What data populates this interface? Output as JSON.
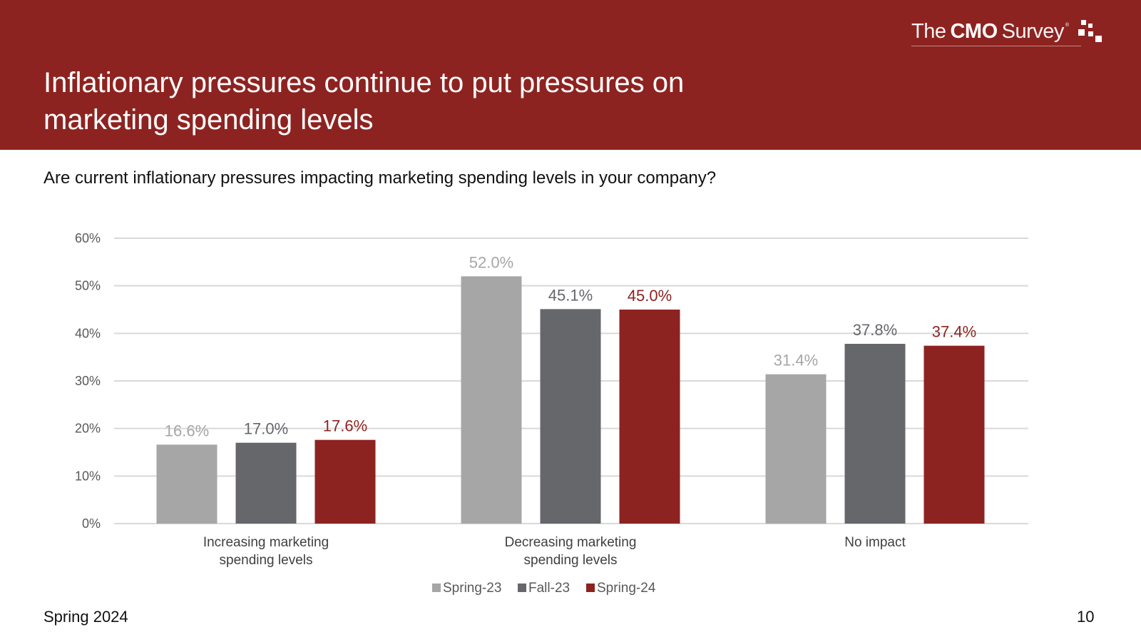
{
  "header": {
    "title": "Inflationary pressures continue to put pressures on marketing spending levels",
    "logo": {
      "the": "The",
      "cmo": "CMO",
      "survey": "Survey",
      "reg": "®"
    }
  },
  "question": "Are current inflationary pressures impacting marketing spending levels in your company?",
  "footer": {
    "left": "Spring 2024",
    "page_number": "10"
  },
  "colors": {
    "header_bg": "#8d2320",
    "spring23": "#a6a6a6",
    "fall23": "#65676b",
    "spring24": "#8d2320",
    "grid": "#d9d9d9"
  },
  "chart_data": {
    "type": "bar",
    "categories": [
      [
        "Increasing marketing",
        "spending levels"
      ],
      [
        "Decreasing marketing",
        "spending levels"
      ],
      [
        "No impact"
      ]
    ],
    "series": [
      {
        "name": "Spring-23",
        "values": [
          16.6,
          52.0,
          31.4
        ],
        "labels": [
          "16.6%",
          "52.0%",
          "31.4%"
        ],
        "color": "#a6a6a6",
        "label_color": "#a6a6a6"
      },
      {
        "name": "Fall-23",
        "values": [
          17.0,
          45.1,
          37.8
        ],
        "labels": [
          "17.0%",
          "45.1%",
          "37.8%"
        ],
        "color": "#65676b",
        "label_color": "#65676b"
      },
      {
        "name": "Spring-24",
        "values": [
          17.6,
          45.0,
          37.4
        ],
        "labels": [
          "17.6%",
          "45.0%",
          "37.4%"
        ],
        "color": "#8d2320",
        "label_color": "#8d2320"
      }
    ],
    "yticks": [
      "0%",
      "10%",
      "20%",
      "30%",
      "40%",
      "50%",
      "60%"
    ],
    "ylim": [
      0,
      60
    ],
    "title": "",
    "xlabel": "",
    "ylabel": "",
    "grid": true,
    "legend": "bottom-center"
  }
}
